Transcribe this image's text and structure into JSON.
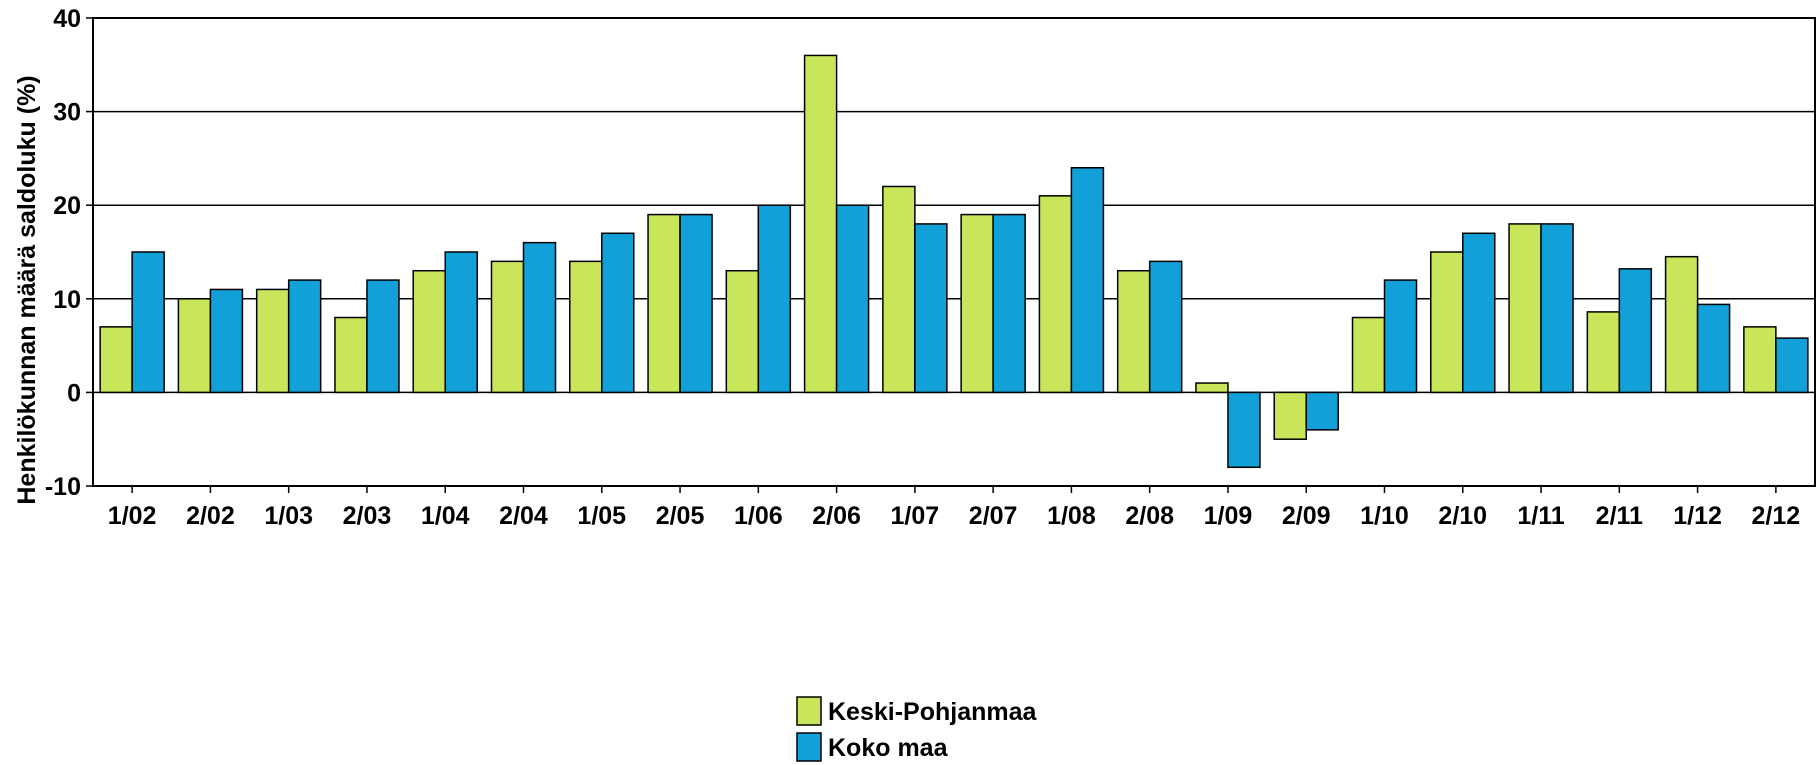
{
  "chart_data": {
    "type": "bar",
    "title": "",
    "xlabel": "",
    "ylabel": "Henkilökunnan määrä saldoluku (%)",
    "ylim": [
      -10,
      40
    ],
    "yticks": [
      -10,
      0,
      10,
      20,
      30,
      40
    ],
    "grid": true,
    "legend_position": "bottom-center",
    "categories": [
      "1/02",
      "2/02",
      "1/03",
      "2/03",
      "1/04",
      "2/04",
      "1/05",
      "2/05",
      "1/06",
      "2/06",
      "1/07",
      "2/07",
      "1/08",
      "2/08",
      "1/09",
      "2/09",
      "1/10",
      "2/10",
      "1/11",
      "2/11",
      "1/12",
      "2/12"
    ],
    "series": [
      {
        "name": "Keski-Pohjanmaa",
        "color": "#c9e65a",
        "values": [
          7,
          10,
          11,
          8,
          13,
          14,
          14,
          19,
          13,
          36,
          22,
          19,
          21,
          13,
          1,
          -5,
          8,
          15,
          18,
          8.6,
          14.5,
          7
        ]
      },
      {
        "name": "Koko maa",
        "color": "#12a0d8",
        "values": [
          15,
          11,
          12,
          12,
          15,
          16,
          17,
          19,
          20,
          20,
          18,
          19,
          24,
          14,
          -8,
          -4,
          12,
          17,
          18,
          13.2,
          9.4,
          5.8
        ]
      }
    ]
  }
}
